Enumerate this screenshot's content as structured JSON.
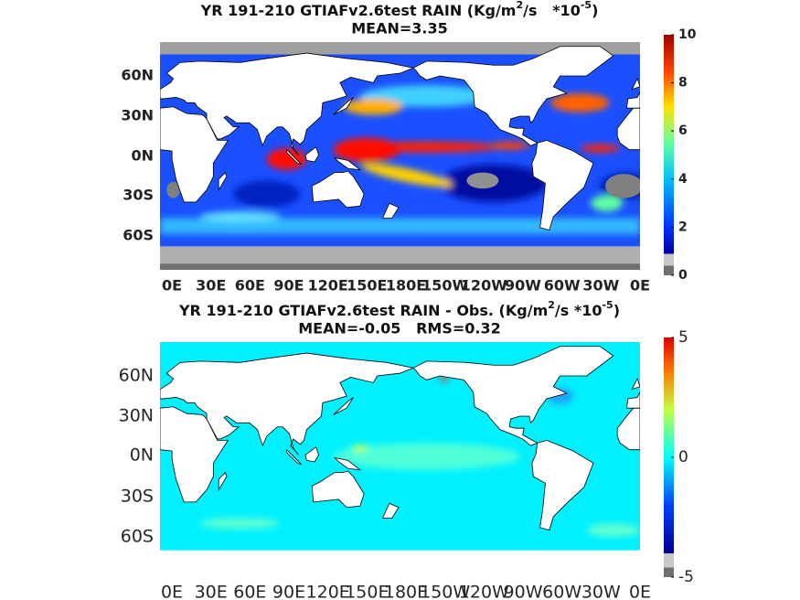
{
  "panels": [
    {
      "title": [
        "YR 191-210 GTIAFv2.6test RAIN (Kg/m",
        "2",
        "/s   *10",
        "-5",
        ")"
      ],
      "subtitle": "MEAN=3.35",
      "lat_labels": [
        "60N",
        "30N",
        "0N",
        "30S",
        "60S"
      ],
      "lon_labels": [
        "0E",
        "30E",
        "60E",
        "90E",
        "120E",
        "150E",
        "180E",
        "150W",
        "120W",
        "90W",
        "60W",
        "30W",
        "0E"
      ],
      "colorbar": {
        "lim": [
          0,
          10
        ],
        "ticks": [
          0,
          2,
          4,
          6,
          8,
          10
        ]
      }
    },
    {
      "title": [
        "YR 191-210 GTIAFv2.6test RAIN - Obs. (Kg/m",
        "2",
        "/s *10",
        "-5",
        ")"
      ],
      "subtitle": "MEAN=-0.05   RMS=0.32",
      "lat_labels": [
        "60N",
        "30N",
        "0N",
        "30S",
        "60S"
      ],
      "lon_labels": [
        "0E",
        "30E",
        "60E",
        "90E",
        "120E",
        "150E",
        "180E",
        "150W",
        "120W",
        "90W",
        "60W",
        "30W",
        "0E"
      ],
      "colorbar": {
        "lim": [
          -5,
          5
        ],
        "ticks": [
          -5,
          0,
          5
        ]
      }
    }
  ]
}
